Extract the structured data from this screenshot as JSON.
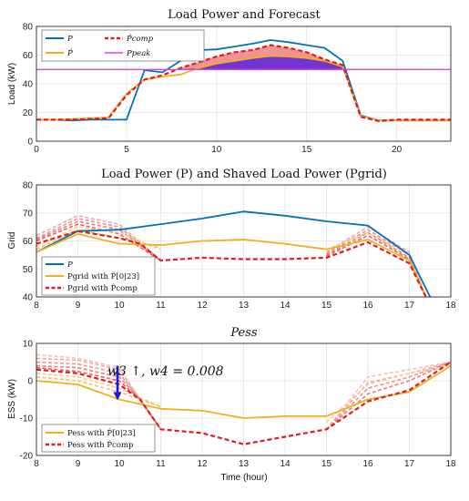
{
  "chart_data": [
    {
      "type": "line",
      "title": "Load Power and Forecast",
      "xlabel": "",
      "ylabel": "Load (kW)",
      "xlim": [
        0,
        23
      ],
      "ylim": [
        0,
        80
      ],
      "xticks": [
        0,
        5,
        10,
        15,
        20
      ],
      "yticks": [
        0,
        20,
        40,
        60,
        80
      ],
      "grid": true,
      "legend": {
        "placement": "top-left",
        "columns": 2
      },
      "series": [
        {
          "name": "P",
          "color": "#0072bd",
          "style": "solid",
          "x": [
            0,
            1,
            2,
            3,
            4,
            5,
            6,
            7,
            8,
            9,
            10,
            11,
            12,
            13,
            14,
            15,
            16,
            17,
            18,
            19,
            20,
            21,
            22,
            23
          ],
          "y": [
            15,
            15,
            14.5,
            15,
            15,
            15,
            49.5,
            48,
            56,
            63.5,
            64,
            66,
            68,
            70.5,
            69,
            67,
            65,
            56,
            18,
            14.5,
            14.5,
            14.5,
            14.5,
            14.5
          ]
        },
        {
          "name": "P̂",
          "color": "#edb120",
          "style": "solid",
          "x": [
            0,
            1,
            2,
            3,
            4,
            5,
            6,
            7,
            8,
            9,
            10,
            11,
            12,
            13,
            14,
            15,
            16,
            17,
            18,
            19,
            20,
            21,
            22,
            23
          ],
          "y": [
            15,
            15,
            15.5,
            16,
            16.5,
            33,
            43,
            45,
            46.5,
            51,
            54,
            56,
            58,
            59.5,
            59,
            58,
            56,
            52,
            17.5,
            14.5,
            14.5,
            14.5,
            14.5,
            14.5
          ]
        },
        {
          "name": "P̂comp",
          "color": "#e41a1c",
          "style": "dashed",
          "x": [
            0,
            1,
            2,
            3,
            4,
            5,
            6,
            7,
            8,
            9,
            10,
            11,
            12,
            13,
            14,
            15,
            16,
            17,
            18,
            19,
            20,
            21,
            22,
            23
          ],
          "y": [
            15,
            15,
            15,
            15.5,
            16,
            32,
            43,
            46,
            51,
            55,
            59,
            62,
            63.5,
            67,
            65,
            62,
            57,
            53,
            17,
            14,
            15,
            15,
            15,
            15
          ]
        },
        {
          "name": "Ppeak",
          "color": "#e040e0",
          "style": "solid",
          "x": [
            0,
            23
          ],
          "y": [
            50,
            50
          ]
        }
      ],
      "shaded_regions": [
        {
          "between": [
            "P̂comp",
            "Ppeak"
          ],
          "x_range": [
            8,
            17.5
          ],
          "color": "#ee8080"
        },
        {
          "between": [
            "P̂",
            "Ppeak"
          ],
          "x_range": [
            8,
            17.5
          ],
          "color": "#6a2fd6"
        }
      ]
    },
    {
      "type": "line",
      "title": "Load Power (P) and Shaved Load Power (Pgrid)",
      "xlabel": "",
      "ylabel": "Grid",
      "xlim": [
        8,
        18
      ],
      "ylim": [
        40,
        80
      ],
      "xticks": [
        8,
        9,
        10,
        11,
        12,
        13,
        14,
        15,
        16,
        17,
        18
      ],
      "yticks": [
        40,
        50,
        60,
        70,
        80
      ],
      "grid": true,
      "legend": {
        "placement": "bottom-left"
      },
      "series": [
        {
          "name": "P",
          "color": "#0072bd",
          "style": "solid",
          "x": [
            8,
            9,
            10,
            11,
            12,
            13,
            14,
            15,
            16,
            17,
            17.5
          ],
          "y": [
            56,
            63.5,
            64,
            66,
            68,
            70.5,
            69,
            67,
            65.5,
            55,
            40
          ]
        },
        {
          "name": "Pgrid with P̂[0|23]",
          "color": "#edb120",
          "style": "solid",
          "x": [
            8,
            9,
            10,
            10.5,
            11,
            12,
            13,
            14,
            15,
            16,
            17,
            17.4
          ],
          "y": [
            56,
            62.5,
            59,
            58.8,
            58.5,
            60,
            60.5,
            59,
            57,
            60.5,
            53,
            40
          ]
        },
        {
          "name": "Pgrid with P̂comp",
          "color": "#e41a1c",
          "style": "dashed",
          "x": [
            8,
            9,
            10,
            10.5,
            11,
            12,
            13,
            14,
            15,
            16,
            17,
            17.4
          ],
          "y": [
            59,
            63.5,
            61,
            59,
            53,
            54,
            53.5,
            53.5,
            54,
            59.5,
            52,
            40
          ]
        }
      ],
      "faded_series": [
        {
          "x": [
            8,
            9,
            10,
            11
          ],
          "y": [
            62,
            69,
            66,
            53
          ],
          "color": "#f4a6a6"
        },
        {
          "x": [
            8,
            9,
            10,
            11
          ],
          "y": [
            61,
            68,
            65,
            53
          ],
          "color": "#f19090"
        },
        {
          "x": [
            8,
            9,
            10,
            11
          ],
          "y": [
            60.5,
            67,
            64,
            53
          ],
          "color": "#ee7a7a"
        },
        {
          "x": [
            8,
            9,
            10,
            11
          ],
          "y": [
            60,
            66,
            62.5,
            53
          ],
          "color": "#ea6060"
        },
        {
          "x": [
            8,
            9,
            10,
            11
          ],
          "y": [
            58,
            65,
            63,
            57
          ],
          "color": "#f6cf8a"
        },
        {
          "x": [
            8,
            9,
            10,
            11
          ],
          "y": [
            57,
            64,
            61,
            57.5
          ],
          "color": "#f2c070"
        },
        {
          "x": [
            15,
            16,
            17,
            17.4
          ],
          "y": [
            56,
            65,
            56,
            40
          ],
          "color": "#f4a6a6"
        },
        {
          "x": [
            15,
            16,
            17,
            17.4
          ],
          "y": [
            55.5,
            64,
            55,
            40
          ],
          "color": "#f19090"
        },
        {
          "x": [
            15,
            16,
            17,
            17.4
          ],
          "y": [
            55,
            63,
            54,
            40
          ],
          "color": "#ee7a7a"
        },
        {
          "x": [
            15,
            16,
            17,
            17.4
          ],
          "y": [
            54.5,
            62,
            53.5,
            40
          ],
          "color": "#ea6060"
        },
        {
          "x": [
            15,
            16,
            17,
            17.4
          ],
          "y": [
            57,
            63,
            55,
            40
          ],
          "color": "#f6cf8a"
        }
      ]
    },
    {
      "type": "line",
      "title": "Pess",
      "xlabel": "Time (hour)",
      "ylabel": "ESS (kW)",
      "xlim": [
        8,
        18
      ],
      "ylim": [
        -20,
        10
      ],
      "xticks": [
        8,
        9,
        10,
        11,
        12,
        13,
        14,
        15,
        16,
        17,
        18
      ],
      "yticks": [
        -20,
        -10,
        0,
        10
      ],
      "grid": true,
      "legend": {
        "placement": "bottom-left"
      },
      "annotation": {
        "text": "w3 ↑, w4 = 0.008",
        "arrow_x": 10,
        "arrow_from_y": 4,
        "arrow_to_y": -5,
        "arrow_color": "#1a1adf"
      },
      "series": [
        {
          "name": "Pess with P̂[0|23]",
          "color": "#edb120",
          "style": "solid",
          "x": [
            8,
            9,
            10,
            11,
            12,
            13,
            14,
            15,
            16,
            17,
            18
          ],
          "y": [
            0,
            -1,
            -5,
            -7.5,
            -8,
            -10,
            -9.5,
            -9.5,
            -5,
            -3,
            4
          ]
        },
        {
          "name": "Pess with P̂comp",
          "color": "#e41a1c",
          "style": "dashed",
          "x": [
            8,
            9,
            10,
            10.5,
            11,
            12,
            13,
            14,
            15,
            16,
            17,
            18
          ],
          "y": [
            3,
            2,
            -1,
            -5,
            -13,
            -14,
            -17,
            -15,
            -13,
            -5.5,
            -2.5,
            5
          ]
        }
      ],
      "faded_series": [
        {
          "x": [
            8,
            9,
            10,
            10.5,
            11
          ],
          "y": [
            7,
            6,
            3.5,
            -5,
            -13
          ],
          "color": "#f6bcbc"
        },
        {
          "x": [
            8,
            9,
            10,
            10.5,
            11
          ],
          "y": [
            6,
            5.5,
            3,
            -5,
            -13
          ],
          "color": "#f4a6a6"
        },
        {
          "x": [
            8,
            9,
            10,
            10.5,
            11
          ],
          "y": [
            5,
            4.5,
            2,
            -5,
            -13
          ],
          "color": "#f19090"
        },
        {
          "x": [
            8,
            9,
            10,
            10.5,
            11
          ],
          "y": [
            4,
            3.5,
            1,
            -5,
            -13
          ],
          "color": "#ee7a7a"
        },
        {
          "x": [
            8,
            9,
            10,
            10.5,
            11
          ],
          "y": [
            3.5,
            2.5,
            0,
            -5,
            -13
          ],
          "color": "#ea6060"
        },
        {
          "x": [
            8,
            9,
            10,
            11
          ],
          "y": [
            2,
            1,
            -2,
            -7
          ],
          "color": "#f6cf8a"
        },
        {
          "x": [
            8,
            9,
            10,
            11
          ],
          "y": [
            1,
            0,
            -3,
            -7
          ],
          "color": "#f2c070"
        },
        {
          "x": [
            15,
            16,
            17,
            18
          ],
          "y": [
            -13,
            1,
            3,
            5
          ],
          "color": "#f6bcbc"
        },
        {
          "x": [
            15,
            16,
            17,
            18
          ],
          "y": [
            -13,
            -0.5,
            2,
            5
          ],
          "color": "#f4a6a6"
        },
        {
          "x": [
            15,
            16,
            17,
            18
          ],
          "y": [
            -13,
            -2,
            1,
            5
          ],
          "color": "#f19090"
        },
        {
          "x": [
            15,
            16,
            17,
            18
          ],
          "y": [
            -13,
            -3.5,
            0,
            5
          ],
          "color": "#ee7a7a"
        },
        {
          "x": [
            15,
            16,
            17,
            18
          ],
          "y": [
            -11,
            -1,
            2,
            4
          ],
          "color": "#f6cf8a"
        }
      ]
    }
  ]
}
